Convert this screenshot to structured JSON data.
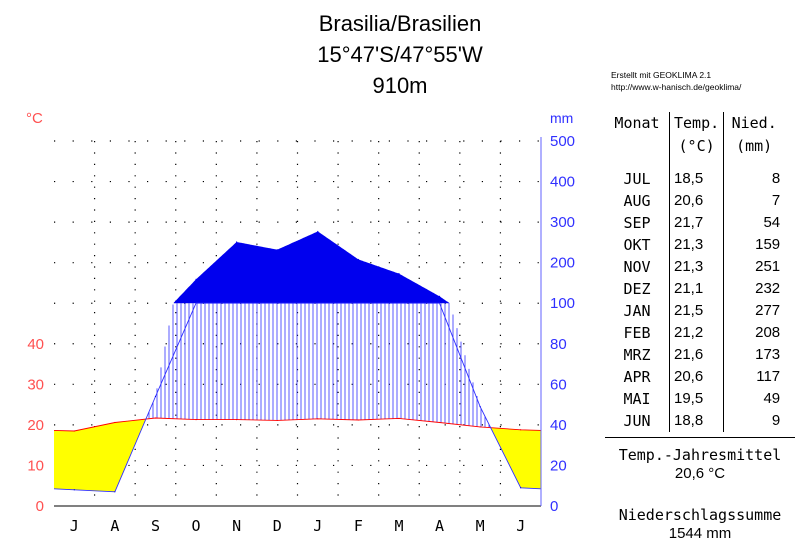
{
  "title": {
    "station": "Brasilia/Brasilien",
    "coords": "15°47'S/47°55'W",
    "elevation": "910m"
  },
  "credit": {
    "line1": "Erstellt mit GEOKLIMA 2.1",
    "line2": "http://www.w-hanisch.de/geoklima/"
  },
  "table": {
    "headers": {
      "month": "Monat",
      "temp": "Temp.",
      "temp_unit": "(°C)",
      "prec": "Nied.",
      "prec_unit": "(mm)"
    },
    "rows": [
      {
        "month": "JUL",
        "temp": "18,5",
        "prec": "8"
      },
      {
        "month": "AUG",
        "temp": "20,6",
        "prec": "7"
      },
      {
        "month": "SEP",
        "temp": "21,7",
        "prec": "54"
      },
      {
        "month": "OKT",
        "temp": "21,3",
        "prec": "159"
      },
      {
        "month": "NOV",
        "temp": "21,3",
        "prec": "251"
      },
      {
        "month": "DEZ",
        "temp": "21,1",
        "prec": "232"
      },
      {
        "month": "JAN",
        "temp": "21,5",
        "prec": "277"
      },
      {
        "month": "FEB",
        "temp": "21,2",
        "prec": "208"
      },
      {
        "month": "MRZ",
        "temp": "21,6",
        "prec": "173"
      },
      {
        "month": "APR",
        "temp": "20,6",
        "prec": "117"
      },
      {
        "month": "MAI",
        "temp": "19,5",
        "prec": "49"
      },
      {
        "month": "JUN",
        "temp": "18,8",
        "prec": "9"
      }
    ]
  },
  "summary": {
    "temp_label": "Temp.-Jahresmittel",
    "temp_value": "20,6 °C",
    "prec_label": "Niederschlagssumme",
    "prec_value": "1544 mm"
  },
  "colors": {
    "temperature": "#ff0000",
    "temperature_axis": "#ff5050",
    "precipitation": "#3030ff",
    "humid": "#0000ff",
    "arid": "#ffff00",
    "precipitation_excess": "#0000ee"
  },
  "chart_data": {
    "type": "line",
    "subtype": "climate diagram (Walter-Lieth)",
    "categories": [
      "J",
      "A",
      "S",
      "O",
      "N",
      "D",
      "J",
      "F",
      "M",
      "A",
      "M",
      "J"
    ],
    "series": [
      {
        "axis": "left",
        "values": [
          18.5,
          20.6,
          21.7,
          21.3,
          21.3,
          21.1,
          21.5,
          21.2,
          21.6,
          20.6,
          19.5,
          18.8
        ]
      },
      {
        "axis": "right",
        "values": [
          8,
          7,
          54,
          159,
          251,
          232,
          277,
          208,
          173,
          117,
          49,
          9
        ]
      }
    ],
    "left_axis": {
      "label": "°C",
      "ticks": [
        "0",
        "10",
        "20",
        "30",
        "40"
      ],
      "range": [
        0,
        50
      ]
    },
    "right_axis": {
      "label": "mm",
      "ticks": [
        "0",
        "20",
        "40",
        "60",
        "80",
        "100",
        "200",
        "300",
        "400",
        "500"
      ],
      "range": [
        0,
        500
      ],
      "scale_note": "0-100 mm at 20 mm per 10 °C, above 100 mm compressed 1:10"
    },
    "grid": "dotted"
  }
}
